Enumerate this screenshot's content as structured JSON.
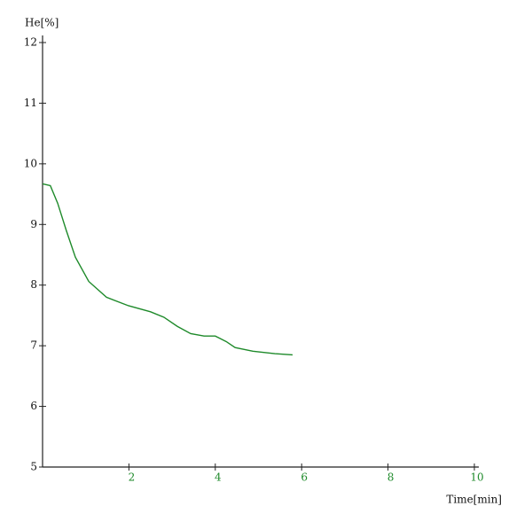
{
  "chart_data": {
    "type": "line",
    "y_label": "He[%]",
    "x_label": "Time[min]",
    "x": [
      0,
      0.18,
      0.35,
      0.55,
      0.76,
      1.07,
      1.48,
      1.99,
      2.5,
      2.81,
      3.12,
      3.43,
      3.74,
      4.0,
      4.25,
      4.46,
      4.87,
      5.38,
      5.79
    ],
    "series": [
      {
        "name": "He",
        "color": "#1e8a2a",
        "values": [
          9.67,
          9.64,
          9.35,
          8.9,
          8.46,
          8.06,
          7.8,
          7.66,
          7.56,
          7.47,
          7.32,
          7.2,
          7.16,
          7.16,
          7.07,
          6.97,
          6.91,
          6.87,
          6.85
        ]
      }
    ],
    "xlim": [
      0,
      10
    ],
    "xticks": [
      2,
      4,
      6,
      8,
      10
    ],
    "xtick_color": "#1e8a2a",
    "ylim": [
      5,
      12
    ],
    "yticks": [
      5,
      6,
      7,
      8,
      9,
      10,
      11,
      12
    ],
    "grid": false
  }
}
